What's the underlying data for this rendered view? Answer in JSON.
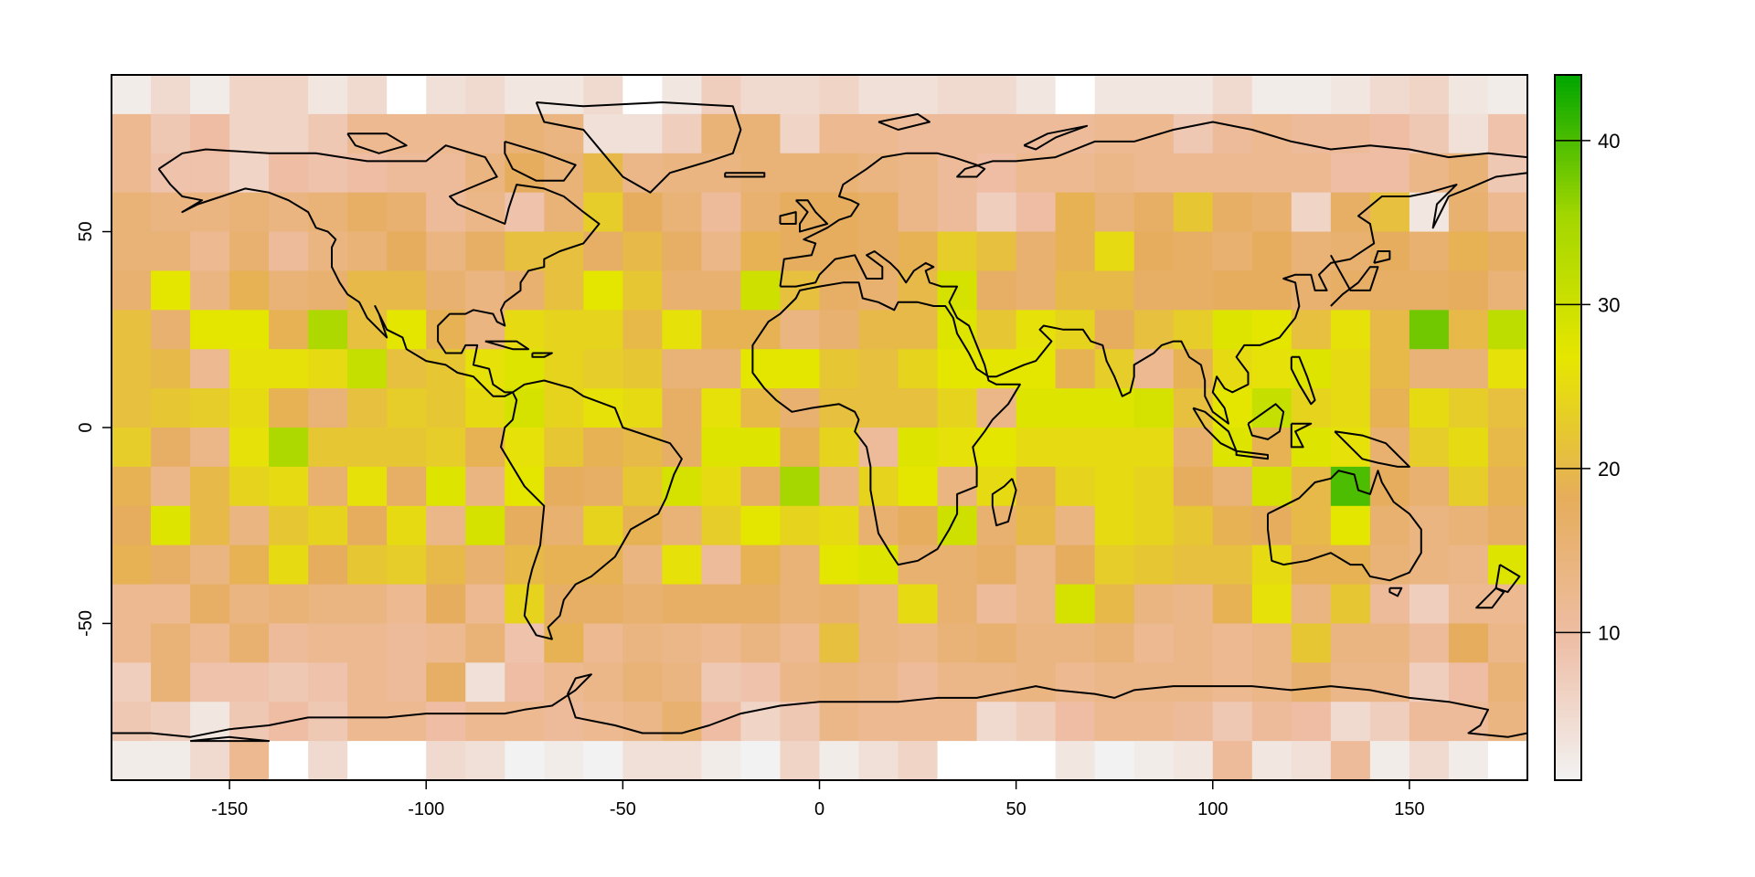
{
  "chart_data": {
    "type": "heatmap",
    "title": "",
    "xlabel": "",
    "ylabel": "",
    "xlim": [
      -180,
      180
    ],
    "ylim": [
      -90,
      90
    ],
    "x_ticks": [
      -150,
      -100,
      -50,
      0,
      50,
      100,
      150
    ],
    "y_ticks": [
      -50,
      0,
      50
    ],
    "x_tick_labels": [
      "-150",
      "-100",
      "-50",
      "0",
      "50",
      "100",
      "150"
    ],
    "y_tick_labels": [
      "-50",
      "0",
      "50"
    ],
    "cell_size_degrees": 10,
    "rows_lat_top": [
      90,
      80,
      70,
      60,
      50,
      40,
      30,
      20,
      10,
      0,
      -10,
      -20,
      -30,
      -40,
      -50,
      -60,
      -70,
      -80
    ],
    "cols_lon_left": [
      -180,
      -170,
      -160,
      -150,
      -140,
      -130,
      -120,
      -110,
      -100,
      -90,
      -80,
      -70,
      -60,
      -50,
      -40,
      -30,
      -20,
      -10,
      0,
      10,
      20,
      30,
      40,
      50,
      60,
      70,
      80,
      90,
      100,
      110,
      120,
      130,
      140,
      150,
      160,
      170
    ],
    "values": [
      [
        2,
        5,
        2,
        6,
        6,
        3,
        5,
        0,
        4,
        5,
        3,
        3,
        5,
        0,
        3,
        7,
        5,
        5,
        6,
        4,
        4,
        5,
        5,
        3,
        0,
        3,
        3,
        3,
        5,
        2,
        2,
        3,
        5,
        6,
        3,
        2
      ],
      [
        12,
        8,
        10,
        6,
        6,
        8,
        12,
        12,
        12,
        12,
        15,
        14,
        4,
        4,
        7,
        15,
        15,
        6,
        12,
        12,
        11,
        11,
        11,
        11,
        11,
        12,
        12,
        8,
        11,
        12,
        11,
        11,
        10,
        8,
        4,
        9
      ],
      [
        12,
        9,
        9,
        6,
        10,
        9,
        10,
        11,
        11,
        14,
        18,
        15,
        20,
        13,
        14,
        14,
        15,
        15,
        15,
        14,
        13,
        11,
        10,
        12,
        12,
        13,
        12,
        12,
        12,
        12,
        12,
        10,
        10,
        13,
        15,
        8
      ],
      [
        15,
        14,
        14,
        15,
        14,
        15,
        17,
        16,
        11,
        13,
        9,
        15,
        23,
        18,
        15,
        11,
        16,
        18,
        18,
        17,
        13,
        11,
        7,
        10,
        19,
        15,
        17,
        22,
        17,
        16,
        6,
        17,
        21,
        3,
        16,
        12
      ],
      [
        15,
        15,
        12,
        16,
        11,
        14,
        15,
        18,
        14,
        17,
        21,
        21,
        17,
        20,
        17,
        13,
        19,
        18,
        18,
        17,
        19,
        23,
        21,
        16,
        19,
        25,
        18,
        17,
        16,
        18,
        15,
        16,
        18,
        16,
        19,
        17
      ],
      [
        16,
        27,
        14,
        19,
        15,
        16,
        20,
        20,
        16,
        14,
        16,
        21,
        27,
        22,
        16,
        16,
        30,
        21,
        17,
        16,
        20,
        29,
        17,
        16,
        20,
        20,
        17,
        17,
        18,
        18,
        16,
        17,
        17,
        17,
        18,
        15
      ],
      [
        21,
        16,
        27,
        27,
        19,
        34,
        21,
        27,
        19,
        14,
        25,
        24,
        24,
        20,
        26,
        19,
        19,
        14,
        16,
        20,
        20,
        28,
        22,
        26,
        24,
        18,
        21,
        23,
        28,
        27,
        21,
        26,
        20,
        38,
        20,
        32
      ],
      [
        21,
        20,
        12,
        26,
        26,
        25,
        31,
        21,
        22,
        26,
        28,
        24,
        23,
        22,
        15,
        15,
        27,
        27,
        22,
        21,
        24,
        27,
        27,
        27,
        19,
        23,
        12,
        19,
        25,
        26,
        28,
        25,
        20,
        15,
        15,
        26
      ],
      [
        21,
        22,
        23,
        25,
        19,
        15,
        21,
        23,
        22,
        25,
        29,
        24,
        26,
        25,
        17,
        26,
        20,
        16,
        21,
        21,
        21,
        24,
        13,
        28,
        28,
        28,
        29,
        21,
        27,
        31,
        24,
        25,
        19,
        25,
        23,
        21
      ],
      [
        23,
        17,
        13,
        26,
        34,
        22,
        22,
        22,
        23,
        19,
        26,
        22,
        19,
        20,
        17,
        28,
        28,
        19,
        24,
        11,
        28,
        26,
        27,
        25,
        25,
        25,
        25,
        16,
        28,
        19,
        28,
        26,
        16,
        23,
        25,
        20
      ],
      [
        19,
        13,
        20,
        24,
        25,
        16,
        26,
        17,
        28,
        14,
        27,
        18,
        17,
        22,
        29,
        25,
        17,
        35,
        14,
        24,
        27,
        14,
        25,
        19,
        24,
        25,
        24,
        18,
        15,
        29,
        20,
        40,
        18,
        16,
        23,
        19
      ],
      [
        18,
        28,
        20,
        14,
        22,
        24,
        18,
        25,
        13,
        29,
        18,
        16,
        24,
        19,
        15,
        23,
        27,
        24,
        25,
        16,
        18,
        30,
        16,
        20,
        14,
        25,
        24,
        22,
        19,
        18,
        20,
        27,
        16,
        14,
        15,
        17
      ],
      [
        19,
        17,
        14,
        19,
        25,
        18,
        22,
        23,
        20,
        16,
        20,
        19,
        19,
        14,
        26,
        11,
        19,
        15,
        27,
        28,
        16,
        16,
        17,
        13,
        18,
        23,
        22,
        21,
        21,
        25,
        19,
        19,
        15,
        14,
        13,
        28
      ],
      [
        12,
        12,
        17,
        14,
        15,
        14,
        14,
        12,
        18,
        12,
        24,
        17,
        17,
        16,
        17,
        17,
        17,
        15,
        16,
        14,
        25,
        16,
        11,
        13,
        29,
        20,
        14,
        13,
        19,
        26,
        14,
        22,
        11,
        7,
        12,
        12
      ],
      [
        12,
        15,
        12,
        16,
        11,
        12,
        12,
        11,
        12,
        15,
        9,
        19,
        12,
        14,
        13,
        12,
        14,
        12,
        21,
        14,
        13,
        15,
        16,
        14,
        14,
        15,
        12,
        13,
        12,
        13,
        22,
        14,
        14,
        11,
        18,
        13
      ],
      [
        7,
        15,
        9,
        9,
        8,
        9,
        12,
        11,
        17,
        4,
        10,
        12,
        13,
        15,
        14,
        8,
        9,
        13,
        14,
        13,
        11,
        13,
        13,
        14,
        12,
        13,
        13,
        13,
        12,
        13,
        16,
        13,
        13,
        7,
        10,
        15
      ],
      [
        8,
        7,
        3,
        8,
        10,
        8,
        12,
        12,
        10,
        12,
        12,
        11,
        12,
        13,
        16,
        10,
        6,
        8,
        13,
        12,
        12,
        12,
        5,
        7,
        10,
        12,
        12,
        11,
        8,
        11,
        10,
        5,
        7,
        11,
        11,
        14
      ],
      [
        2,
        2,
        5,
        12,
        0,
        5,
        0,
        0,
        5,
        4,
        1,
        2,
        1,
        4,
        4,
        2,
        1,
        6,
        2,
        4,
        6,
        0,
        0,
        0,
        3,
        1,
        2,
        3,
        11,
        3,
        4,
        11,
        2,
        5,
        2,
        0
      ]
    ],
    "legend": {
      "min": 1,
      "max": 44,
      "ticks": [
        10,
        20,
        30,
        40
      ],
      "tick_labels": [
        "10",
        "20",
        "30",
        "40"
      ],
      "placement": "right",
      "colors": [
        "#f2f2f2",
        "#eebea6",
        "#e6ad5c",
        "#e6e600",
        "#a3d700",
        "#00a600"
      ]
    },
    "grid": false,
    "overlay": "coastlines",
    "outline_color": "#000000"
  }
}
